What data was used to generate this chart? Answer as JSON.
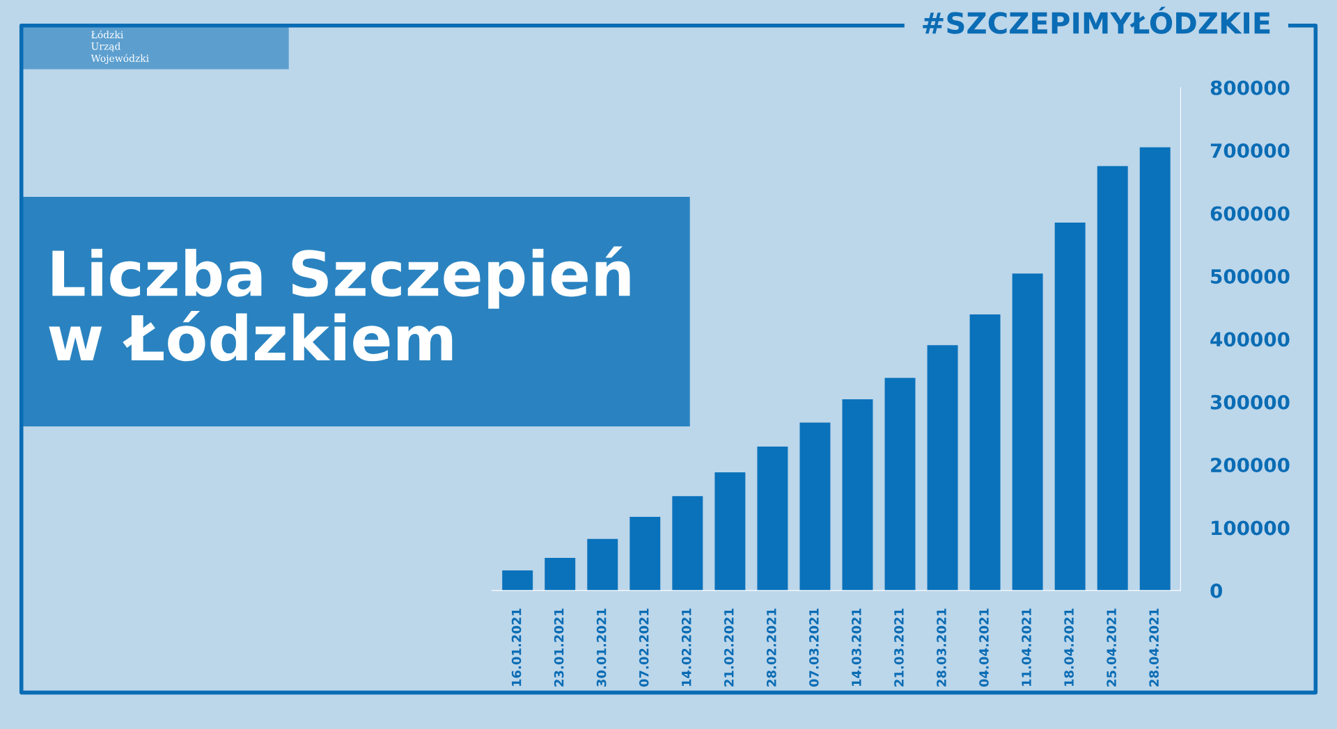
{
  "chart_data": {
    "type": "bar",
    "title": "Liczba Szczepień\nw Łódzkiem",
    "annotations": [
      "#SZCZEPIMYŁÓDZKIE",
      "Łódzki\nUrząd\nWojewódzki"
    ],
    "categories": [
      "16.01.2021",
      "23.01.2021",
      "30.01.2021",
      "07.02.2021",
      "14.02.2021",
      "21.02.2021",
      "28.02.2021",
      "07.03.2021",
      "14.03.2021",
      "21.03.2021",
      "28.03.2021",
      "04.04.2021",
      "11.04.2021",
      "18.04.2021",
      "25.04.2021",
      "28.04.2021"
    ],
    "values": [
      32000,
      52000,
      82000,
      117000,
      150000,
      188000,
      229000,
      267000,
      304000,
      338000,
      390000,
      439000,
      504000,
      585000,
      675000,
      705000
    ],
    "color": "#0a72bb",
    "ylim": [
      0,
      800000
    ],
    "yticks": [
      0,
      100000,
      200000,
      300000,
      400000,
      500000,
      600000,
      700000,
      800000
    ],
    "grid": false,
    "legend": false
  }
}
